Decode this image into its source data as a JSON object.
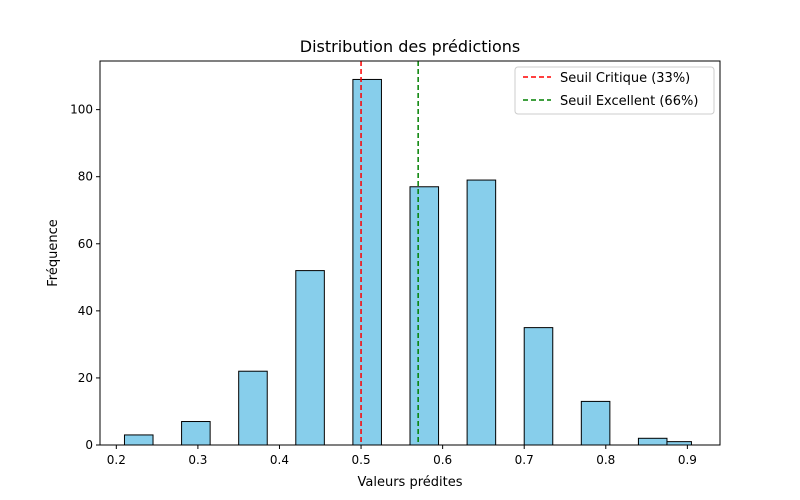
{
  "chart_data": {
    "type": "bar",
    "title": "Distribution des prédictions",
    "xlabel": "Valeurs prédites",
    "ylabel": "Fréquence",
    "xlim": [
      0.18,
      0.94
    ],
    "ylim": [
      0,
      114.5
    ],
    "x_ticks": [
      "0.2",
      "0.3",
      "0.4",
      "0.5",
      "0.6",
      "0.7",
      "0.8",
      "0.9"
    ],
    "y_ticks": [
      "0",
      "20",
      "40",
      "60",
      "80",
      "100"
    ],
    "grid": false,
    "legend_position": "top-right",
    "bar_color": "#87ceeb",
    "bar_edge_color": "#000000",
    "bins": [
      {
        "start": 0.21,
        "end": 0.245,
        "count": 3
      },
      {
        "start": 0.28,
        "end": 0.315,
        "count": 7
      },
      {
        "start": 0.35,
        "end": 0.385,
        "count": 22
      },
      {
        "start": 0.42,
        "end": 0.455,
        "count": 52
      },
      {
        "start": 0.49,
        "end": 0.525,
        "count": 109
      },
      {
        "start": 0.56,
        "end": 0.595,
        "count": 77
      },
      {
        "start": 0.63,
        "end": 0.665,
        "count": 79
      },
      {
        "start": 0.7,
        "end": 0.735,
        "count": 35
      },
      {
        "start": 0.77,
        "end": 0.805,
        "count": 13
      },
      {
        "start": 0.84,
        "end": 0.875,
        "count": 2
      },
      {
        "start": 0.875,
        "end": 0.905,
        "count": 1
      }
    ],
    "reference_lines": [
      {
        "x": 0.5,
        "label": "Seuil Critique (33%)",
        "color": "#ff0000",
        "style": "dashed"
      },
      {
        "x": 0.57,
        "label": "Seuil Excellent (66%)",
        "color": "#008000",
        "style": "dashed"
      }
    ]
  }
}
